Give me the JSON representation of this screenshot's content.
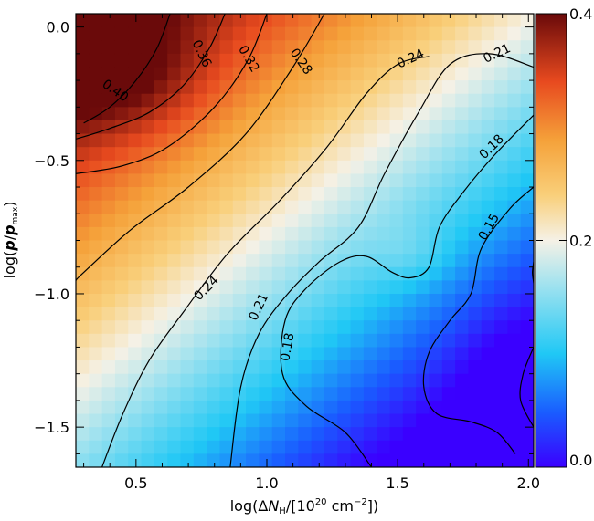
{
  "chart_data": {
    "type": "heatmap",
    "title": "",
    "xlabel": "log(ΔN_H/[10^20 cm^-2])",
    "ylabel": "log(p/p_max)",
    "xlabel_parts": {
      "prefix": "log(Δ",
      "var": "N",
      "sub": "H",
      "mid": "/[10",
      "sup1": "20",
      "mid2": " cm",
      "sup2": "−2",
      "suffix": "])"
    },
    "ylabel_parts": {
      "prefix": "log(",
      "var1": "p",
      "slash": "/",
      "var2": "p",
      "sub": "max",
      "suffix": ")"
    },
    "xlim": [
      0.27,
      2.02
    ],
    "ylim": [
      -1.65,
      0.05
    ],
    "x_ticks": [
      0.5,
      1.0,
      1.5,
      2.0
    ],
    "x_tick_labels": [
      "0.5",
      "1.0",
      "1.5",
      "2.0"
    ],
    "y_ticks": [
      0.0,
      -0.5,
      -1.0,
      -1.5
    ],
    "y_tick_labels": [
      "0.0",
      "−0.5",
      "−1.0",
      "−1.5"
    ],
    "colorbar": {
      "min": 0.0,
      "max": 0.4,
      "ticks": [
        0.0,
        0.2,
        0.4
      ],
      "tick_labels": [
        "0.0",
        "0.2",
        "0.4"
      ]
    },
    "grid": {
      "nx": 35,
      "ny": 34
    },
    "contours": [
      {
        "level": 0.4,
        "label": "0.40",
        "points": [
          [
            0.3,
            -0.36
          ],
          [
            0.4,
            -0.3
          ],
          [
            0.5,
            -0.2
          ],
          [
            0.58,
            -0.08
          ],
          [
            0.63,
            0.05
          ]
        ]
      },
      {
        "level": 0.36,
        "label": "0.36",
        "points": [
          [
            0.84,
            0.05
          ],
          [
            0.78,
            -0.08
          ],
          [
            0.68,
            -0.22
          ],
          [
            0.55,
            -0.32
          ],
          [
            0.4,
            -0.38
          ],
          [
            0.27,
            -0.42
          ]
        ]
      },
      {
        "level": 0.32,
        "label": "0.32",
        "points": [
          [
            1.0,
            0.05
          ],
          [
            0.93,
            -0.12
          ],
          [
            0.8,
            -0.3
          ],
          [
            0.62,
            -0.45
          ],
          [
            0.45,
            -0.52
          ],
          [
            0.27,
            -0.55
          ]
        ]
      },
      {
        "level": 0.28,
        "label": "0.28",
        "points": [
          [
            1.22,
            0.05
          ],
          [
            1.1,
            -0.15
          ],
          [
            0.92,
            -0.4
          ],
          [
            0.7,
            -0.6
          ],
          [
            0.48,
            -0.76
          ],
          [
            0.3,
            -0.92
          ],
          [
            0.27,
            -0.95
          ]
        ]
      },
      {
        "level": 0.24,
        "label": "0.24",
        "points": [
          [
            1.62,
            -0.11
          ],
          [
            1.5,
            -0.14
          ],
          [
            1.38,
            -0.25
          ],
          [
            1.23,
            -0.45
          ],
          [
            1.05,
            -0.65
          ],
          [
            0.85,
            -0.85
          ],
          [
            0.68,
            -1.07
          ],
          [
            0.55,
            -1.25
          ],
          [
            0.45,
            -1.45
          ],
          [
            0.37,
            -1.65
          ]
        ]
      },
      {
        "level": 0.21,
        "label": "0.21",
        "points": [
          [
            2.02,
            -0.15
          ],
          [
            1.85,
            -0.1
          ],
          [
            1.7,
            -0.14
          ],
          [
            1.58,
            -0.32
          ],
          [
            1.45,
            -0.55
          ],
          [
            1.35,
            -0.75
          ],
          [
            1.2,
            -0.88
          ],
          [
            1.08,
            -1.0
          ],
          [
            0.97,
            -1.15
          ],
          [
            0.9,
            -1.35
          ],
          [
            0.86,
            -1.65
          ]
        ]
      },
      {
        "level": 0.18,
        "label": "0.18",
        "points": [
          [
            2.02,
            -0.33
          ],
          [
            1.87,
            -0.48
          ],
          [
            1.75,
            -0.62
          ],
          [
            1.66,
            -0.75
          ],
          [
            1.62,
            -0.9
          ],
          [
            1.55,
            -0.94
          ],
          [
            1.48,
            -0.92
          ],
          [
            1.38,
            -0.86
          ],
          [
            1.28,
            -0.88
          ],
          [
            1.15,
            -0.98
          ],
          [
            1.07,
            -1.1
          ],
          [
            1.06,
            -1.3
          ],
          [
            1.15,
            -1.42
          ],
          [
            1.3,
            -1.52
          ],
          [
            1.4,
            -1.65
          ]
        ]
      },
      {
        "level": 0.15,
        "label": "0.15",
        "points": [
          [
            2.02,
            -0.6
          ],
          [
            1.93,
            -0.68
          ],
          [
            1.82,
            -0.83
          ],
          [
            1.78,
            -1.0
          ],
          [
            1.7,
            -1.1
          ],
          [
            1.62,
            -1.22
          ],
          [
            1.6,
            -1.35
          ],
          [
            1.65,
            -1.45
          ],
          [
            1.78,
            -1.48
          ],
          [
            1.88,
            -1.52
          ],
          [
            1.95,
            -1.6
          ]
        ]
      },
      {
        "level": 0.12,
        "label": "",
        "points": [
          [
            2.02,
            -1.2
          ],
          [
            1.98,
            -1.3
          ],
          [
            1.97,
            -1.4
          ],
          [
            2.02,
            -1.5
          ]
        ]
      },
      {
        "level": 0.12,
        "label": "",
        "points": [
          [
            2.02,
            -0.88
          ],
          [
            2.015,
            -0.92
          ],
          [
            2.02,
            -0.96
          ]
        ]
      }
    ],
    "contour_labels": [
      {
        "text": "0.40",
        "x": 0.42,
        "y": -0.24,
        "rot": 35
      },
      {
        "text": "0.36",
        "x": 0.75,
        "y": -0.1,
        "rot": 65
      },
      {
        "text": "0.32",
        "x": 0.93,
        "y": -0.12,
        "rot": 60
      },
      {
        "text": "0.28",
        "x": 1.13,
        "y": -0.13,
        "rot": 55
      },
      {
        "text": "0.24",
        "x": 1.55,
        "y": -0.12,
        "rot": -25
      },
      {
        "text": "0.21",
        "x": 1.88,
        "y": -0.1,
        "rot": -25
      },
      {
        "text": "0.18",
        "x": 1.86,
        "y": -0.45,
        "rot": -45
      },
      {
        "text": "0.15",
        "x": 1.85,
        "y": -0.75,
        "rot": -60
      },
      {
        "text": "0.24",
        "x": 0.77,
        "y": -0.98,
        "rot": -45
      },
      {
        "text": "0.21",
        "x": 0.97,
        "y": -1.05,
        "rot": -65
      },
      {
        "text": "0.18",
        "x": 1.08,
        "y": -1.2,
        "rot": -80
      }
    ]
  }
}
